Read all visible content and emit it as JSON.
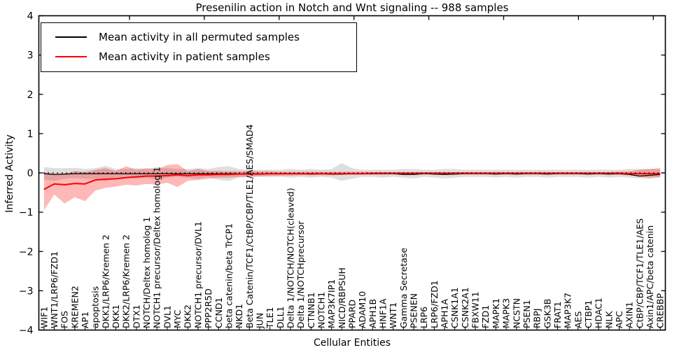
{
  "figure": {
    "title": "Presenilin action in Notch and Wnt signaling -- 988 samples",
    "xlabel": "Cellular Entities",
    "ylabel": "Inferred Activity"
  },
  "legend": {
    "entries": [
      {
        "label": "Mean activity in all permuted samples",
        "color": "#000000"
      },
      {
        "label": "Mean activity in patient samples",
        "color": "#ff0000"
      }
    ]
  },
  "chart_data": {
    "type": "line",
    "title": "Presenilin action in Notch and Wnt signaling -- 988 samples",
    "xlabel": "Cellular Entities",
    "ylabel": "Inferred Activity",
    "ylim": [
      -4,
      4
    ],
    "ytick_values": [
      4,
      3,
      2,
      1,
      0,
      -1,
      -2,
      -3,
      -4
    ],
    "ytick_labels": [
      "4",
      "3",
      "2",
      "1",
      "0",
      "−1",
      "−2",
      "−3",
      "−4"
    ],
    "grid": false,
    "legend_position": "upper left",
    "zero_reference_line": true,
    "categories": [
      "WIF1",
      "WNT1/LRP6/FZD1",
      "FOS",
      "KREMEN2",
      "AP1",
      "apoptosis",
      "DKK1/LRP6/Kremen 2",
      "DKK1",
      "DKK2/LRP6/Kremen 2",
      "DTX1",
      "NOTCH/Deltex homolog 1",
      "NOTCH1 precursor/Deltex homolog 1",
      "DVL1",
      "MYC",
      "DKK2",
      "NOTCH1 precursor/DVL1",
      "PPP2R5D",
      "CCND1",
      "beta catenin/beta TrCP1",
      "NKD1",
      "Beta Catenin/TCF1/CtBP/CBP/TLE1/AES/SMAD4",
      "JUN",
      "TLE1",
      "DLL1",
      "Delta 1/NOTCH/NOTCH(cleaved)",
      "Delta 1/NOTCHprecursor",
      "CTNNB1",
      "NOTCH1",
      "MAP3K7IP1",
      "NICD/RBPSUH",
      "PPARD",
      "ADAM10",
      "APH1B",
      "HNF1A",
      "WNT1",
      "Gamma Secretase",
      "PSENEN",
      "LRP6",
      "LRP6/FZD1",
      "APH1A",
      "CSNK1A1",
      "CSNK2A1",
      "FBXW11",
      "FZD1",
      "MAPK1",
      "MAPK3",
      "NCSTN",
      "PSEN1",
      "RBPJ",
      "GSK3B",
      "FRAT1",
      "MAP3K7",
      "AES",
      "CTBP1",
      "HDAC1",
      "NLK",
      "APC",
      "AXIN1",
      "CtBP/CBP/TCF1/TLE1/AES",
      "Axin1/APC/beta catenin",
      "CREBBP"
    ],
    "series": [
      {
        "name": "Mean activity in all permuted samples",
        "color": "#000000",
        "line_width": 1.3,
        "values": [
          -0.02,
          -0.04,
          -0.03,
          -0.02,
          -0.02,
          -0.02,
          -0.02,
          -0.02,
          -0.02,
          -0.02,
          -0.02,
          -0.02,
          -0.02,
          -0.02,
          -0.02,
          -0.02,
          -0.02,
          -0.02,
          -0.02,
          -0.02,
          -0.02,
          -0.02,
          -0.02,
          -0.02,
          -0.02,
          -0.02,
          -0.03,
          -0.02,
          -0.03,
          -0.03,
          -0.02,
          -0.02,
          -0.02,
          -0.02,
          -0.02,
          -0.04,
          -0.04,
          -0.02,
          -0.03,
          -0.04,
          -0.03,
          -0.02,
          -0.02,
          -0.02,
          -0.03,
          -0.02,
          -0.03,
          -0.02,
          -0.02,
          -0.03,
          -0.02,
          -0.02,
          -0.02,
          -0.03,
          -0.02,
          -0.03,
          -0.02,
          -0.04,
          -0.08,
          -0.06,
          -0.04
        ],
        "band": {
          "fill": "#000000",
          "opacity": 0.13,
          "upper": [
            0.15,
            0.12,
            0.12,
            0.13,
            0.1,
            0.12,
            0.18,
            0.1,
            0.1,
            0.12,
            0.1,
            0.15,
            0.12,
            0.1,
            0.1,
            0.12,
            0.1,
            0.15,
            0.17,
            0.1,
            0.08,
            0.08,
            0.08,
            0.08,
            0.1,
            0.08,
            0.1,
            0.08,
            0.1,
            0.25,
            0.12,
            0.08,
            0.08,
            0.08,
            0.08,
            0.1,
            0.1,
            0.08,
            0.08,
            0.1,
            0.1,
            0.08,
            0.08,
            0.08,
            0.08,
            0.08,
            0.08,
            0.08,
            0.08,
            0.08,
            0.08,
            0.08,
            0.08,
            0.08,
            0.08,
            0.08,
            0.08,
            0.1,
            0.1,
            0.1,
            0.1
          ],
          "lower": [
            -0.18,
            -0.2,
            -0.15,
            -0.13,
            -0.15,
            -0.15,
            -0.22,
            -0.12,
            -0.12,
            -0.15,
            -0.12,
            -0.18,
            -0.12,
            -0.1,
            -0.12,
            -0.15,
            -0.1,
            -0.18,
            -0.2,
            -0.12,
            -0.1,
            -0.1,
            -0.1,
            -0.1,
            -0.12,
            -0.1,
            -0.12,
            -0.1,
            -0.12,
            -0.2,
            -0.15,
            -0.1,
            -0.1,
            -0.12,
            -0.1,
            -0.12,
            -0.14,
            -0.1,
            -0.12,
            -0.14,
            -0.12,
            -0.1,
            -0.1,
            -0.1,
            -0.12,
            -0.1,
            -0.12,
            -0.1,
            -0.1,
            -0.12,
            -0.1,
            -0.1,
            -0.1,
            -0.12,
            -0.1,
            -0.12,
            -0.1,
            -0.12,
            -0.14,
            -0.15,
            -0.12
          ]
        }
      },
      {
        "name": "Mean activity in patient samples",
        "color": "#ff0000",
        "line_width": 2,
        "values": [
          -0.42,
          -0.28,
          -0.3,
          -0.27,
          -0.28,
          -0.18,
          -0.16,
          -0.15,
          -0.12,
          -0.1,
          -0.08,
          -0.08,
          -0.07,
          -0.05,
          -0.07,
          -0.05,
          -0.05,
          -0.04,
          -0.04,
          -0.03,
          -0.03,
          -0.03,
          -0.02,
          -0.02,
          -0.02,
          -0.02,
          -0.02,
          -0.02,
          -0.02,
          -0.02,
          -0.02,
          -0.02,
          -0.01,
          -0.01,
          -0.01,
          -0.01,
          -0.01,
          -0.01,
          -0.01,
          -0.01,
          -0.01,
          -0.01,
          -0.01,
          -0.01,
          -0.01,
          -0.01,
          -0.01,
          -0.01,
          -0.01,
          -0.01,
          -0.01,
          -0.01,
          -0.01,
          -0.01,
          -0.01,
          -0.01,
          -0.01,
          -0.02,
          -0.02,
          -0.02,
          -0.02
        ],
        "band": {
          "fill": "#ff0000",
          "opacity": 0.28,
          "upper": [
            0.02,
            -0.02,
            -0.05,
            0.05,
            0.02,
            0.08,
            0.12,
            0.05,
            0.17,
            0.08,
            0.12,
            0.08,
            0.2,
            0.22,
            0.05,
            0.1,
            0.05,
            0.05,
            0.04,
            0.04,
            0.05,
            0.04,
            0.04,
            0.03,
            0.03,
            0.03,
            0.03,
            0.03,
            0.03,
            0.03,
            0.03,
            0.03,
            0.02,
            0.02,
            0.02,
            0.02,
            0.02,
            0.02,
            0.02,
            0.02,
            0.02,
            0.02,
            0.02,
            0.02,
            0.02,
            0.02,
            0.02,
            0.02,
            0.02,
            0.02,
            0.02,
            0.02,
            0.02,
            0.02,
            0.02,
            0.02,
            0.03,
            0.04,
            0.08,
            0.1,
            0.12
          ],
          "lower": [
            -0.95,
            -0.55,
            -0.78,
            -0.62,
            -0.72,
            -0.45,
            -0.38,
            -0.35,
            -0.3,
            -0.32,
            -0.28,
            -0.3,
            -0.25,
            -0.36,
            -0.2,
            -0.18,
            -0.15,
            -0.12,
            -0.12,
            -0.1,
            -0.1,
            -0.08,
            -0.08,
            -0.07,
            -0.07,
            -0.06,
            -0.06,
            -0.06,
            -0.06,
            -0.05,
            -0.05,
            -0.05,
            -0.05,
            -0.05,
            -0.04,
            -0.04,
            -0.04,
            -0.04,
            -0.04,
            -0.04,
            -0.04,
            -0.04,
            -0.04,
            -0.04,
            -0.04,
            -0.04,
            -0.04,
            -0.04,
            -0.04,
            -0.04,
            -0.04,
            -0.04,
            -0.04,
            -0.04,
            -0.04,
            -0.04,
            -0.05,
            -0.06,
            -0.1,
            -0.12,
            -0.1
          ]
        }
      }
    ]
  }
}
